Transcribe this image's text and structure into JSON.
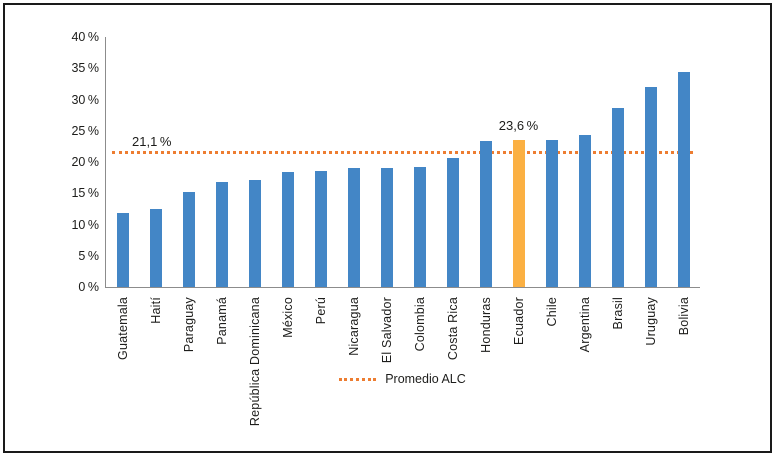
{
  "chart_data": {
    "type": "bar",
    "title": "",
    "xlabel": "",
    "ylabel": "",
    "ylim": [
      0,
      40
    ],
    "grid": "off",
    "categories": [
      "Guatemala",
      "Haití",
      "Paraguay",
      "Panamá",
      "República Dominicana",
      "México",
      "Perú",
      "Nicaragua",
      "El Salvador",
      "Colombia",
      "Costa Rica",
      "Honduras",
      "Ecuador",
      "Chile",
      "Argentina",
      "Brasil",
      "Uruguay",
      "Bolivia"
    ],
    "values": [
      11.9,
      12.5,
      15.2,
      16.8,
      17.1,
      18.4,
      18.5,
      19.0,
      19.1,
      19.2,
      20.7,
      23.3,
      23.6,
      23.6,
      24.3,
      28.7,
      32.0,
      34.4
    ],
    "y_ticks": [
      0,
      5,
      10,
      15,
      20,
      25,
      30,
      35,
      40
    ],
    "y_tick_labels": [
      "0 %",
      "5 %",
      "10 %",
      "15 %",
      "20 %",
      "25 %",
      "30 %",
      "35 %",
      "40 %"
    ],
    "highlight": {
      "category": "Ecuador",
      "index": 12,
      "value": 23.6,
      "data_label": "23,6 %",
      "color": "#fbb042"
    },
    "reference_line": {
      "value": 21.1,
      "label": "21,1 %",
      "style": "dotted",
      "color": "#ed7d31"
    },
    "legend": {
      "position": "bottom-center",
      "entries": [
        {
          "label": "Promedio ALC",
          "swatch": "dotted-line",
          "color": "#ed7d31"
        }
      ]
    }
  },
  "colors": {
    "bar_blue": "#4386c6",
    "highlight_orange": "#fbb042",
    "reference_orange": "#ed7d31",
    "axis_gray": "#8c8c8c",
    "text": "#1d1d1b",
    "frame_border": "#1a1a1a",
    "background": "#ffffff"
  }
}
